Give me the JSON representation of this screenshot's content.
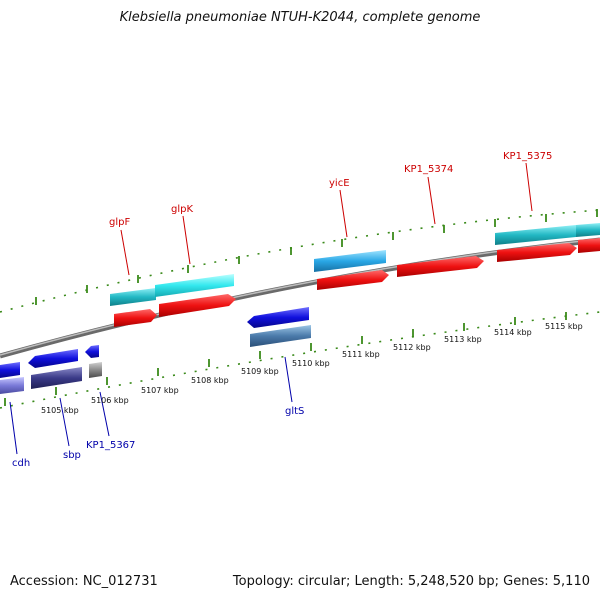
{
  "title": "Klebsiella pneumoniae NTUH-K2044, complete genome",
  "accession": "Accession: NC_012731",
  "topology": "Topology: circular; Length: 5,248,520 bp; Genes: 5,110",
  "colors": {
    "backbone": "#8a8a8a",
    "tick": "#3a8a1a",
    "cds_forward": "#ee1111",
    "gene_forward": "#22b8c4",
    "cds_reverse": "#1111dd",
    "gene_reverse": "#3a3a88",
    "label_forward": "#cc0000",
    "label_reverse": "#0000aa"
  },
  "kbp_labels": [
    "5105 kbp",
    "5106 kbp",
    "5107 kbp",
    "5108 kbp",
    "5109 kbp",
    "5110 kbp",
    "5111 kbp",
    "5112 kbp",
    "5113 kbp",
    "5114 kbp",
    "5115 kbp"
  ],
  "forward_gene_labels": [
    "glpF",
    "glpK",
    "yicE",
    "KP1_5374",
    "KP1_5375"
  ],
  "reverse_gene_labels": [
    "cdh",
    "sbp",
    "KP1_5367",
    "gltS"
  ]
}
